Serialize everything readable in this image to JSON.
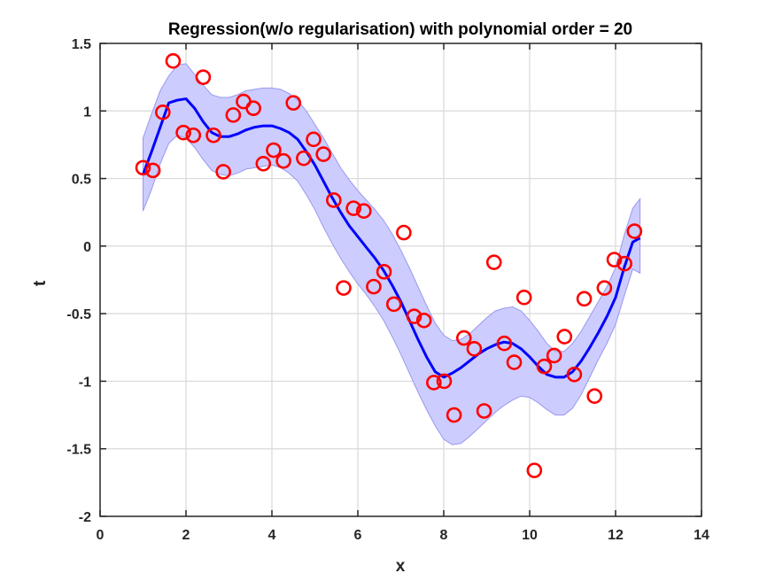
{
  "chart_data": {
    "type": "line",
    "title": "Regression(w/o regularisation) with polynomial order = 20",
    "xlabel": "x",
    "ylabel": "t",
    "xlim": [
      0,
      14
    ],
    "ylim": [
      -2,
      1.5
    ],
    "xticks": [
      0,
      2,
      4,
      6,
      8,
      10,
      12,
      14
    ],
    "xtick_labels": [
      "0",
      "2",
      "4",
      "6",
      "8",
      "10",
      "12",
      "14"
    ],
    "yticks": [
      -2,
      -1.5,
      -1,
      -0.5,
      0,
      0.5,
      1,
      1.5
    ],
    "ytick_labels": [
      "-2",
      "-1.5",
      "-1",
      "-0.5",
      "0",
      "0.5",
      "1",
      "1.5"
    ],
    "grid": true,
    "colors": {
      "fit_line": "#0000ff",
      "band_fill": "#ccccff",
      "band_edge": "#9999ee",
      "markers": "#ff0000",
      "grid": "#d9d9d9",
      "axes": "#262626"
    },
    "series": [
      {
        "kind": "band",
        "x": [
          1.0,
          1.2,
          1.4,
          1.6,
          1.8,
          2.0,
          2.2,
          2.4,
          2.6,
          2.8,
          3.0,
          3.2,
          3.4,
          3.6,
          3.8,
          4.0,
          4.2,
          4.4,
          4.6,
          4.8,
          5.0,
          5.2,
          5.4,
          5.6,
          5.8,
          6.0,
          6.2,
          6.4,
          6.6,
          6.8,
          7.0,
          7.2,
          7.4,
          7.6,
          7.8,
          8.0,
          8.2,
          8.4,
          8.6,
          8.8,
          9.0,
          9.2,
          9.4,
          9.6,
          9.8,
          10.0,
          10.2,
          10.4,
          10.6,
          10.8,
          11.0,
          11.2,
          11.4,
          11.6,
          11.8,
          12.0,
          12.2,
          12.4,
          12.57
        ],
        "upper": [
          0.8,
          0.98,
          1.15,
          1.26,
          1.34,
          1.35,
          1.27,
          1.19,
          1.12,
          1.1,
          1.1,
          1.12,
          1.15,
          1.16,
          1.17,
          1.17,
          1.16,
          1.13,
          1.08,
          1.0,
          0.9,
          0.8,
          0.69,
          0.58,
          0.49,
          0.41,
          0.34,
          0.27,
          0.19,
          0.09,
          -0.03,
          -0.16,
          -0.3,
          -0.44,
          -0.57,
          -0.66,
          -0.7,
          -0.69,
          -0.65,
          -0.59,
          -0.53,
          -0.48,
          -0.46,
          -0.45,
          -0.48,
          -0.55,
          -0.63,
          -0.72,
          -0.78,
          -0.78,
          -0.72,
          -0.63,
          -0.52,
          -0.41,
          -0.3,
          -0.16,
          0.08,
          0.28,
          0.35
        ],
        "lower": [
          0.26,
          0.42,
          0.61,
          0.76,
          0.82,
          0.8,
          0.73,
          0.64,
          0.56,
          0.53,
          0.52,
          0.54,
          0.57,
          0.58,
          0.59,
          0.6,
          0.58,
          0.54,
          0.48,
          0.38,
          0.27,
          0.14,
          0.02,
          -0.09,
          -0.19,
          -0.28,
          -0.36,
          -0.45,
          -0.55,
          -0.67,
          -0.8,
          -0.94,
          -1.08,
          -1.21,
          -1.33,
          -1.43,
          -1.47,
          -1.46,
          -1.41,
          -1.35,
          -1.29,
          -1.23,
          -1.18,
          -1.14,
          -1.11,
          -1.12,
          -1.16,
          -1.21,
          -1.25,
          -1.25,
          -1.2,
          -1.1,
          -0.97,
          -0.84,
          -0.72,
          -0.58,
          -0.37,
          -0.17,
          -0.2
        ]
      },
      {
        "kind": "line",
        "x": [
          1.0,
          1.2,
          1.4,
          1.6,
          1.8,
          2.0,
          2.2,
          2.4,
          2.6,
          2.8,
          3.0,
          3.2,
          3.4,
          3.6,
          3.8,
          4.0,
          4.2,
          4.4,
          4.6,
          4.8,
          5.0,
          5.2,
          5.4,
          5.6,
          5.8,
          6.0,
          6.2,
          6.4,
          6.6,
          6.8,
          7.0,
          7.2,
          7.4,
          7.6,
          7.8,
          8.0,
          8.2,
          8.4,
          8.6,
          8.8,
          9.0,
          9.2,
          9.4,
          9.6,
          9.8,
          10.0,
          10.2,
          10.4,
          10.6,
          10.8,
          11.0,
          11.2,
          11.4,
          11.6,
          11.8,
          12.0,
          12.2,
          12.4,
          12.57
        ],
        "y": [
          0.53,
          0.7,
          0.88,
          1.06,
          1.08,
          1.09,
          1.02,
          0.92,
          0.84,
          0.81,
          0.81,
          0.83,
          0.86,
          0.88,
          0.89,
          0.89,
          0.87,
          0.84,
          0.79,
          0.7,
          0.6,
          0.48,
          0.36,
          0.25,
          0.15,
          0.07,
          -0.01,
          -0.09,
          -0.18,
          -0.29,
          -0.41,
          -0.55,
          -0.69,
          -0.82,
          -0.93,
          -0.97,
          -0.94,
          -0.9,
          -0.85,
          -0.8,
          -0.76,
          -0.73,
          -0.71,
          -0.72,
          -0.76,
          -0.82,
          -0.89,
          -0.95,
          -0.97,
          -0.97,
          -0.93,
          -0.85,
          -0.75,
          -0.64,
          -0.52,
          -0.38,
          -0.16,
          0.03,
          0.06
        ]
      },
      {
        "kind": "scatter",
        "x": [
          1.0,
          1.23,
          1.46,
          1.7,
          1.94,
          2.17,
          2.4,
          2.64,
          2.87,
          3.1,
          3.34,
          3.57,
          3.8,
          4.04,
          4.27,
          4.5,
          4.74,
          4.97,
          5.2,
          5.44,
          5.67,
          5.9,
          6.14,
          6.37,
          6.61,
          6.84,
          7.07,
          7.31,
          7.54,
          7.77,
          8.01,
          8.24,
          8.47,
          8.71,
          8.94,
          9.17,
          9.41,
          9.64,
          9.87,
          10.11,
          10.34,
          10.57,
          10.81,
          11.04,
          11.27,
          11.51,
          11.74,
          11.97,
          12.21,
          12.44
        ],
        "y": [
          0.58,
          0.56,
          0.99,
          1.37,
          0.84,
          0.82,
          1.25,
          0.82,
          0.55,
          0.97,
          1.07,
          1.02,
          0.61,
          0.71,
          0.63,
          1.06,
          0.65,
          0.79,
          0.68,
          0.34,
          -0.31,
          0.28,
          0.26,
          -0.3,
          -0.19,
          -0.43,
          0.1,
          -0.52,
          -0.55,
          -1.01,
          -1.0,
          -1.25,
          -0.68,
          -0.76,
          -1.22,
          -0.12,
          -0.72,
          -0.86,
          -0.38,
          -1.66,
          -0.89,
          -0.81,
          -0.67,
          -0.95,
          -0.39,
          -1.11,
          -0.31,
          -0.1,
          -0.13,
          0.11
        ]
      }
    ]
  }
}
